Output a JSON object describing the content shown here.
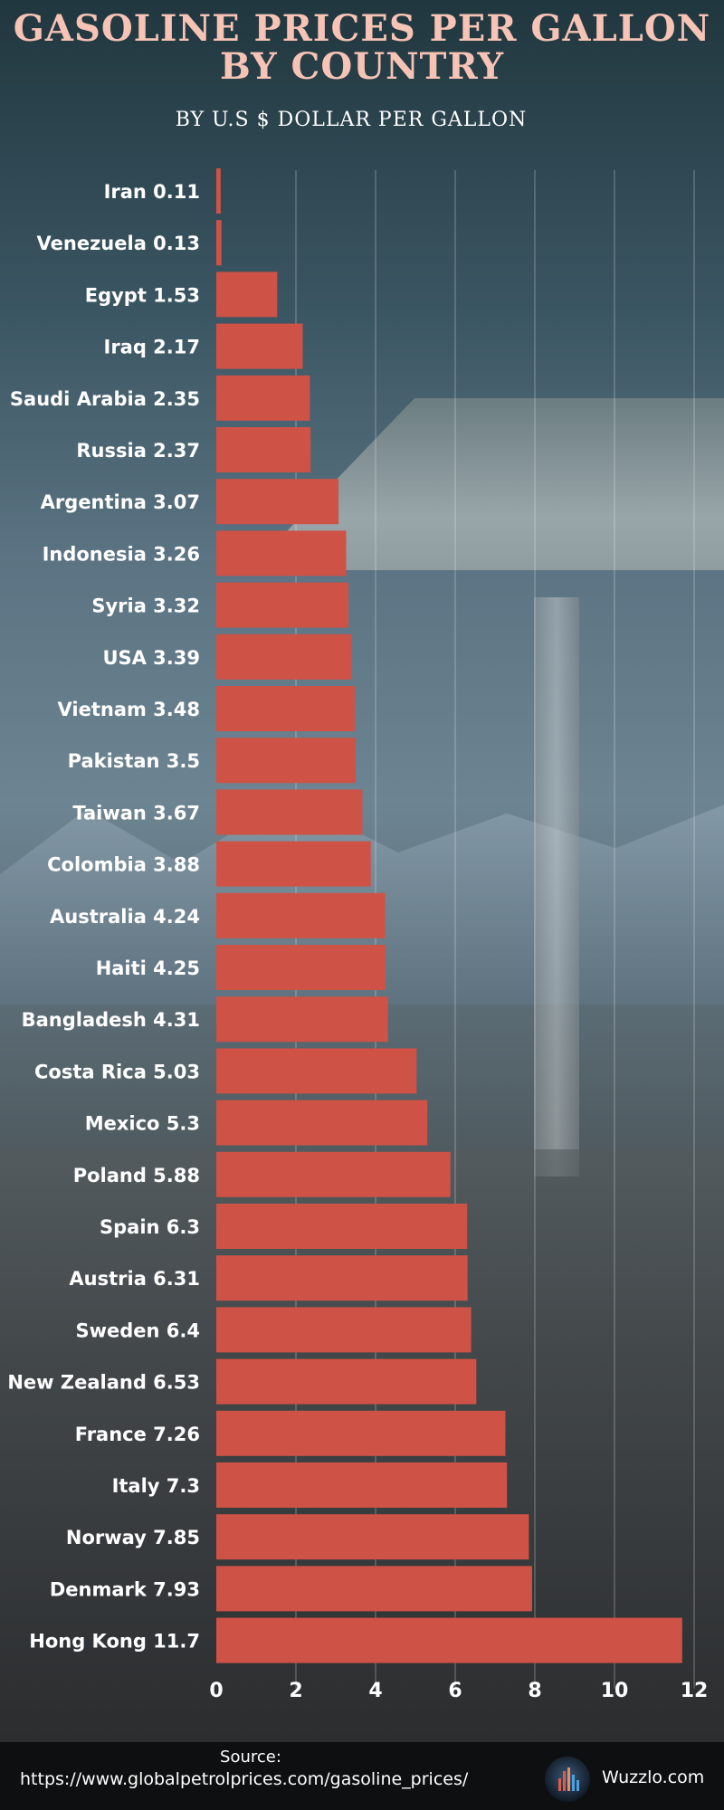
{
  "chart_data": {
    "type": "bar",
    "orientation": "horizontal",
    "title": "GASOLINE PRICES PER GALLON\nBY COUNTRY",
    "subtitle": "BY U.S $ DOLLAR PER GALLON",
    "xlabel": "",
    "ylabel": "",
    "xlim": [
      0,
      12
    ],
    "x_ticks": [
      0,
      2,
      4,
      6,
      8,
      10,
      12
    ],
    "grid": "vertical",
    "bar_color": "#cf5247",
    "categories": [
      "Iran",
      "Venezuela",
      "Egypt",
      "Iraq",
      "Saudi Arabia",
      "Russia",
      "Argentina",
      "Indonesia",
      "Syria",
      "USA",
      "Vietnam",
      "Pakistan",
      "Taiwan",
      "Colombia",
      "Australia",
      "Haiti",
      "Bangladesh",
      "Costa Rica",
      "Mexico",
      "Poland",
      "Spain",
      "Austria",
      "Sweden",
      "New Zealand",
      "France",
      "Italy",
      "Norway",
      "Denmark",
      "Hong Kong"
    ],
    "values": [
      0.11,
      0.13,
      1.53,
      2.17,
      2.35,
      2.37,
      3.07,
      3.26,
      3.32,
      3.39,
      3.48,
      3.5,
      3.67,
      3.88,
      4.24,
      4.25,
      4.31,
      5.03,
      5.3,
      5.88,
      6.3,
      6.31,
      6.4,
      6.53,
      7.26,
      7.3,
      7.85,
      7.93,
      11.7
    ],
    "labels": [
      "Iran 0.11",
      "Venezuela 0.13",
      "Egypt 1.53",
      "Iraq 2.17",
      "Saudi Arabia 2.35",
      "Russia 2.37",
      "Argentina 3.07",
      "Indonesia 3.26",
      "Syria 3.32",
      "USA 3.39",
      "Vietnam 3.48",
      "Pakistan 3.5",
      "Taiwan 3.67",
      "Colombia 3.88",
      "Australia 4.24",
      "Haiti 4.25",
      "Bangladesh 4.31",
      "Costa Rica 5.03",
      "Mexico 5.3",
      "Poland 5.88",
      "Spain 6.3",
      "Austria 6.31",
      "Sweden 6.4",
      "New Zealand 6.53",
      "France 7.26",
      "Italy 7.3",
      "Norway 7.85",
      "Denmark 7.93",
      "Hong Kong 11.7"
    ]
  },
  "footer": {
    "source_label": "Source:",
    "source_url": "https://www.globalpetrolprices.com/gasoline_prices/",
    "brand": "Wuzzlo.com",
    "brand_logo_icon": "bar-chart-logo-icon"
  },
  "colors": {
    "title": "#f7c3b5",
    "bar": "#cf5247",
    "footer_bg": "#0e0f10"
  }
}
